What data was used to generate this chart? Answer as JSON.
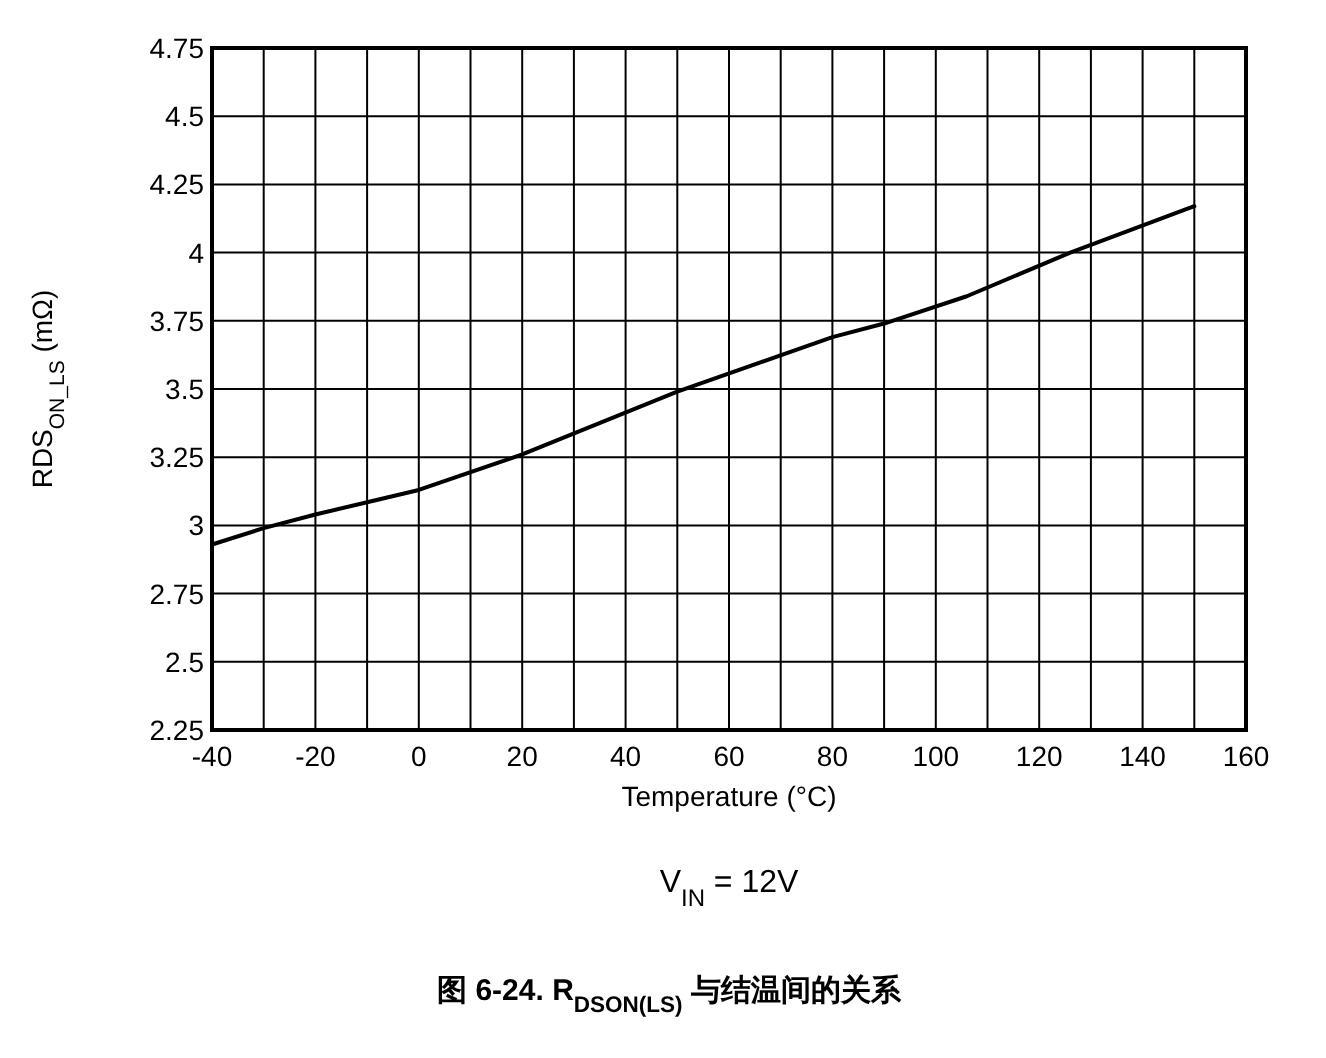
{
  "chart_data": {
    "type": "line",
    "title": "图 6-24. R$_{DSON(LS)}$ 与结温间的关系",
    "xlabel": "Temperature (°C)",
    "ylabel": "RDS$_{ON_LS}$ (mΩ)",
    "annotations": [
      "V$_{IN}$ = 12V"
    ],
    "x": [
      -40,
      -30,
      -20,
      -10,
      0,
      20,
      50,
      80,
      90,
      106,
      126,
      150
    ],
    "series": [
      {
        "color": "#000000",
        "values": [
          2.93,
          2.99,
          3.04,
          3.085,
          3.13,
          3.26,
          3.49,
          3.69,
          3.74,
          3.84,
          4.0,
          4.17
        ]
      }
    ],
    "xlim": [
      -40,
      160
    ],
    "ylim": [
      2.25,
      4.75
    ],
    "xticks": [
      -40,
      {
        "value": -30,
        "label": null
      },
      -20,
      {
        "value": -10,
        "label": null
      },
      0,
      {
        "value": 10,
        "label": null
      },
      20,
      {
        "value": 30,
        "label": null
      },
      40,
      {
        "value": 50,
        "label": null
      },
      60,
      {
        "value": 70,
        "label": null
      },
      80,
      {
        "value": 90,
        "label": null
      },
      100,
      {
        "value": 110,
        "label": null
      },
      120,
      {
        "value": 130,
        "label": null
      },
      140,
      {
        "value": 150,
        "label": null
      },
      160
    ],
    "yticks": [
      2.25,
      2.5,
      2.75,
      3,
      3.25,
      3.5,
      3.75,
      4,
      4.25,
      4.5,
      4.75
    ],
    "grid": true,
    "line_style": "solid"
  }
}
